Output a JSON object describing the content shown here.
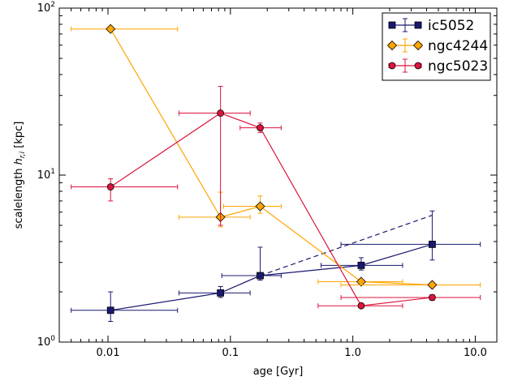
{
  "chart_data": {
    "type": "scatter",
    "xlabel": "age [Gyr]",
    "ylabel_prefix": "scalelength ",
    "ylabel_symbol": "h",
    "ylabel_sub": "r,i",
    "ylabel_suffix": " [kpc]",
    "xscale": "log",
    "yscale": "log",
    "xlim": [
      0.004,
      15
    ],
    "ylim": [
      1,
      100
    ],
    "x_ticks": [
      {
        "value": 0.01,
        "label": "0.01"
      },
      {
        "value": 0.1,
        "label": "0.1"
      },
      {
        "value": 1,
        "label": "1.0"
      },
      {
        "value": 10,
        "label": "10.0"
      }
    ],
    "y_ticks": [
      {
        "value": 1,
        "base": "10",
        "exp": "0"
      },
      {
        "value": 10,
        "base": "10",
        "exp": "1"
      },
      {
        "value": 100,
        "base": "10",
        "exp": "2"
      }
    ],
    "grid": false,
    "legend_position": "top-right",
    "series": [
      {
        "name": "ic5052",
        "color": "#191970",
        "marker": "square",
        "points": [
          {
            "x": 0.0105,
            "y": 1.55,
            "xlo": 0.005,
            "xhi": 0.037,
            "ylo": 1.33,
            "yhi": 2.0
          },
          {
            "x": 0.083,
            "y": 1.97,
            "xlo": 0.038,
            "xhi": 0.145,
            "ylo": 1.85,
            "yhi": 2.15
          },
          {
            "x": 0.175,
            "y": 2.5,
            "xlo": 0.085,
            "xhi": 0.26,
            "ylo": 2.35,
            "yhi": 3.7
          },
          {
            "x": 1.17,
            "y": 2.88,
            "xlo": 0.55,
            "xhi": 2.55,
            "ylo": 2.7,
            "yhi": 3.2
          },
          {
            "x": 4.45,
            "y": 3.85,
            "xlo": 0.8,
            "xhi": 11.0,
            "ylo": 3.1,
            "yhi": 6.1
          }
        ],
        "dashed_extension": [
          {
            "x": 0.175,
            "y": 2.5
          },
          {
            "x": 4.45,
            "y": 5.75
          }
        ]
      },
      {
        "name": "ngc4244",
        "color": "#FFA500",
        "marker": "diamond",
        "points": [
          {
            "x": 0.0105,
            "y": 75.0,
            "xlo": 0.005,
            "xhi": 0.037,
            "ylo": 75.0,
            "yhi": 75.0
          },
          {
            "x": 0.083,
            "y": 5.6,
            "xlo": 0.038,
            "xhi": 0.145,
            "ylo": 4.9,
            "yhi": 7.9
          },
          {
            "x": 0.175,
            "y": 6.5,
            "xlo": 0.088,
            "xhi": 0.26,
            "ylo": 5.9,
            "yhi": 7.5
          },
          {
            "x": 1.17,
            "y": 2.3,
            "xlo": 0.52,
            "xhi": 2.55,
            "ylo": 2.25,
            "yhi": 2.35
          },
          {
            "x": 4.45,
            "y": 2.2,
            "xlo": 0.8,
            "xhi": 11.0,
            "ylo": 2.15,
            "yhi": 2.25
          }
        ]
      },
      {
        "name": "ngc5023",
        "color": "#DC143C",
        "marker": "circle",
        "points": [
          {
            "x": 0.0105,
            "y": 8.5,
            "xlo": 0.005,
            "xhi": 0.037,
            "ylo": 7.0,
            "yhi": 9.5
          },
          {
            "x": 0.083,
            "y": 23.5,
            "xlo": 0.038,
            "xhi": 0.145,
            "ylo": 5.0,
            "yhi": 34.0
          },
          {
            "x": 0.175,
            "y": 19.2,
            "xlo": 0.12,
            "xhi": 0.26,
            "ylo": 18.0,
            "yhi": 20.5
          },
          {
            "x": 1.17,
            "y": 1.65,
            "xlo": 0.52,
            "xhi": 2.55,
            "ylo": 1.6,
            "yhi": 1.7
          },
          {
            "x": 4.45,
            "y": 1.85,
            "xlo": 0.8,
            "xhi": 11.0,
            "ylo": 1.78,
            "yhi": 1.92
          }
        ]
      }
    ]
  }
}
